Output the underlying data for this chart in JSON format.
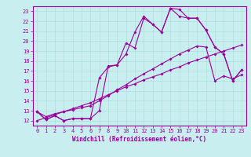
{
  "xlabel": "Windchill (Refroidissement éolien,°C)",
  "background_color": "#c8eef0",
  "line_color": "#990099",
  "grid_color": "#b0dde0",
  "xlim": [
    -0.5,
    23.5
  ],
  "ylim": [
    11.5,
    23.5
  ],
  "xticks": [
    0,
    1,
    2,
    3,
    4,
    5,
    6,
    7,
    8,
    9,
    10,
    11,
    12,
    13,
    14,
    15,
    16,
    17,
    18,
    19,
    20,
    21,
    22,
    23
  ],
  "yticks": [
    12,
    13,
    14,
    15,
    16,
    17,
    18,
    19,
    20,
    21,
    22,
    23
  ],
  "line1_x": [
    0,
    1,
    2,
    3,
    4,
    5,
    6,
    7,
    8,
    9,
    10,
    11,
    12,
    13,
    14,
    15,
    16,
    17,
    18,
    19,
    20,
    21,
    22,
    23
  ],
  "line1_y": [
    12.9,
    12.1,
    12.5,
    12.0,
    12.2,
    12.2,
    12.2,
    13.0,
    17.5,
    17.6,
    19.8,
    19.3,
    22.3,
    21.7,
    20.9,
    23.3,
    23.2,
    22.3,
    22.3,
    21.1,
    19.4,
    18.7,
    16.0,
    17.1
  ],
  "line2_x": [
    0,
    1,
    2,
    3,
    4,
    5,
    6,
    7,
    8,
    9,
    10,
    11,
    12,
    13,
    14,
    15,
    16,
    17,
    18,
    19,
    20,
    21,
    22,
    23
  ],
  "line2_y": [
    12.9,
    12.1,
    12.5,
    12.0,
    12.2,
    12.2,
    12.2,
    16.3,
    17.4,
    17.6,
    18.7,
    20.9,
    22.5,
    21.7,
    20.9,
    23.3,
    22.5,
    22.3,
    22.3,
    21.1,
    19.4,
    18.7,
    16.0,
    17.1
  ],
  "line3_x": [
    0,
    1,
    2,
    3,
    4,
    5,
    6,
    7,
    8,
    9,
    10,
    11,
    12,
    13,
    14,
    15,
    16,
    17,
    18,
    19,
    20,
    21,
    22,
    23
  ],
  "line3_y": [
    12.9,
    12.4,
    12.7,
    12.9,
    13.1,
    13.3,
    13.5,
    14.0,
    14.5,
    15.1,
    15.6,
    16.2,
    16.7,
    17.2,
    17.7,
    18.2,
    18.7,
    19.1,
    19.5,
    19.4,
    16.0,
    16.5,
    16.2,
    16.6
  ],
  "line4_x": [
    0,
    1,
    2,
    3,
    4,
    5,
    6,
    7,
    8,
    9,
    10,
    11,
    12,
    13,
    14,
    15,
    16,
    17,
    18,
    19,
    20,
    21,
    22,
    23
  ],
  "line4_y": [
    12.0,
    12.3,
    12.6,
    12.9,
    13.2,
    13.5,
    13.8,
    14.2,
    14.6,
    15.0,
    15.4,
    15.7,
    16.1,
    16.4,
    16.7,
    17.1,
    17.4,
    17.8,
    18.1,
    18.4,
    18.7,
    19.0,
    19.3,
    19.6
  ]
}
